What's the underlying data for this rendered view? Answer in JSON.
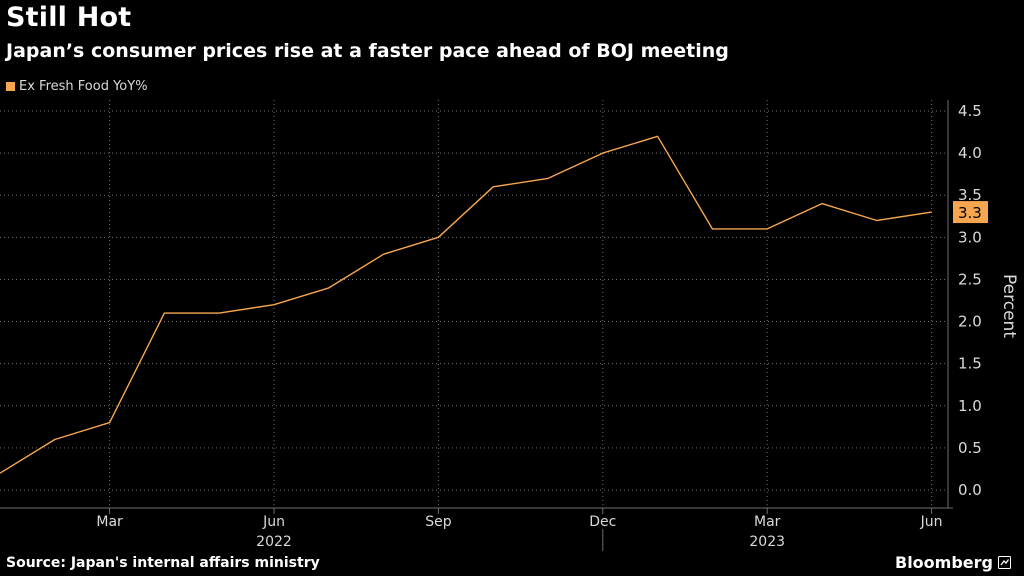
{
  "header": {
    "title": "Still Hot",
    "subtitle": "Japan’s consumer prices rise at a faster pace ahead of BOJ meeting"
  },
  "footer": {
    "source": "Source: Japan's internal affairs ministry",
    "brand": "Bloomberg"
  },
  "colors": {
    "background": "#000000",
    "series": "#f6a64f",
    "grid": "#6e6e6e",
    "text": "#ffffff",
    "tick_text": "#d9d9d9"
  },
  "chart_data": {
    "type": "line",
    "title": "Still Hot",
    "subtitle": "Japan’s consumer prices rise at a faster pace ahead of BOJ meeting",
    "ylabel": "Percent",
    "xlabel": "",
    "ylim": [
      0,
      4.5
    ],
    "yticks": [
      "0.0",
      "0.5",
      "1.0",
      "1.5",
      "2.0",
      "2.5",
      "3.0",
      "3.5",
      "4.0",
      "4.5"
    ],
    "x": [
      "2022-01",
      "2022-02",
      "2022-03",
      "2022-04",
      "2022-05",
      "2022-06",
      "2022-07",
      "2022-08",
      "2022-09",
      "2022-10",
      "2022-11",
      "2022-12",
      "2023-01",
      "2023-02",
      "2023-03",
      "2023-04",
      "2023-05",
      "2023-06"
    ],
    "xticks": [
      {
        "index": 2,
        "label": "Mar"
      },
      {
        "index": 5,
        "label": "Jun"
      },
      {
        "index": 8,
        "label": "Sep"
      },
      {
        "index": 11,
        "label": "Dec"
      },
      {
        "index": 14,
        "label": "Mar"
      },
      {
        "index": 17,
        "label": "Jun"
      }
    ],
    "year_labels": [
      {
        "label": "2022",
        "center_index": 5
      },
      {
        "label": "2023",
        "center_index": 14
      }
    ],
    "year_divider_index": 11,
    "series": [
      {
        "name": "Ex Fresh Food YoY%",
        "values": [
          0.2,
          0.6,
          0.8,
          2.1,
          2.1,
          2.2,
          2.4,
          2.8,
          3.0,
          3.6,
          3.7,
          4.0,
          4.2,
          3.1,
          3.1,
          3.4,
          3.2,
          3.3
        ],
        "last_value_label": "3.3"
      }
    ]
  }
}
